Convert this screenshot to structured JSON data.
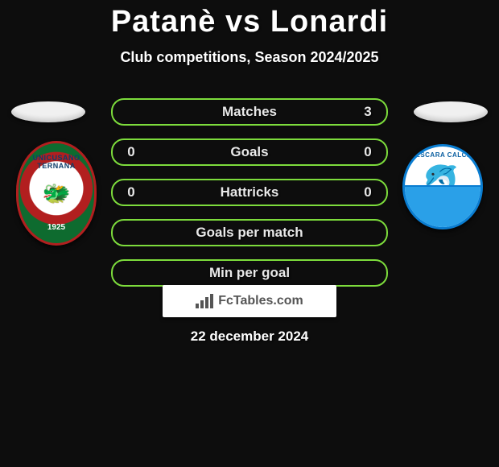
{
  "header": {
    "title": "Patanè vs Lonardi",
    "subtitle": "Club competitions, Season 2024/2025"
  },
  "left_club": {
    "name": "Ternana",
    "text_top": "UNICUSANO\nTERNANA",
    "year": "1925"
  },
  "right_club": {
    "name": "Pescara",
    "text_top": "PESCARA CALCIO"
  },
  "stats": {
    "row_border_color": "#7ddc3c",
    "rows": [
      {
        "label": "Matches",
        "left": "",
        "right": "3"
      },
      {
        "label": "Goals",
        "left": "0",
        "right": "0"
      },
      {
        "label": "Hattricks",
        "left": "0",
        "right": "0"
      },
      {
        "label": "Goals per match",
        "left": "",
        "right": ""
      },
      {
        "label": "Min per goal",
        "left": "",
        "right": ""
      }
    ]
  },
  "footer": {
    "site": "FcTables.com",
    "date": "22 december 2024"
  },
  "colors": {
    "background": "#0d0d0d",
    "text": "#ffffff",
    "accent": "#7ddc3c"
  }
}
